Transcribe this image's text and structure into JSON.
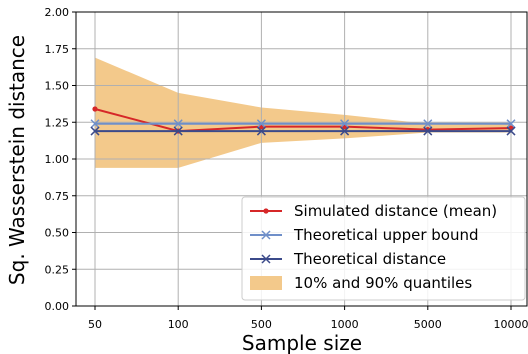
{
  "chart_data": {
    "type": "line",
    "xlabel": "Sample size",
    "ylabel": "Sq. Wasserstein distance",
    "categories": [
      "50",
      "100",
      "500",
      "1000",
      "5000",
      "10000"
    ],
    "ylim": [
      0.0,
      2.0
    ],
    "yticks": [
      "0.00",
      "0.25",
      "0.50",
      "0.75",
      "1.00",
      "1.25",
      "1.50",
      "1.75",
      "2.00"
    ],
    "grid": true,
    "legend_position": "bottom-right",
    "series": [
      {
        "name": "Simulated distance (mean)",
        "values": [
          1.34,
          1.19,
          1.22,
          1.22,
          1.2,
          1.21
        ],
        "color": "#d62728",
        "marker": "dot"
      },
      {
        "name": "Theoretical upper bound",
        "values": [
          1.24,
          1.24,
          1.24,
          1.24,
          1.24,
          1.24
        ],
        "color": "#6f8fc9",
        "marker": "x"
      },
      {
        "name": "Theoretical distance",
        "values": [
          1.19,
          1.19,
          1.19,
          1.19,
          1.19,
          1.19
        ],
        "color": "#3b4a8a",
        "marker": "x"
      }
    ],
    "band": {
      "name": "10% and 90% quantiles",
      "lower": [
        0.94,
        0.94,
        1.11,
        1.14,
        1.18,
        1.18
      ],
      "upper": [
        1.69,
        1.45,
        1.35,
        1.3,
        1.24,
        1.24
      ],
      "color": "#f3c98b"
    }
  }
}
